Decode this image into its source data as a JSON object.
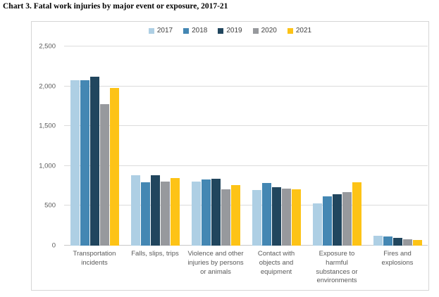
{
  "page": {
    "title": "Chart 3. Fatal work injuries by major event or exposure, 2017-21"
  },
  "chart_data": {
    "type": "bar",
    "title": "Chart 3. Fatal work injuries by major event or exposure, 2017-21",
    "categories": [
      "Transportation incidents",
      "Falls, slips, trips",
      "Violence and other injuries by persons or animals",
      "Contact with objects and equipment",
      "Exposure to harmful substances or environments",
      "Fires and explosions"
    ],
    "series": [
      {
        "name": "2017",
        "color": "#aecfe4",
        "values": [
          2077,
          887,
          807,
          695,
          531,
          123
        ]
      },
      {
        "name": "2018",
        "color": "#4487b3",
        "values": [
          2080,
          791,
          828,
          786,
          621,
          115
        ]
      },
      {
        "name": "2019",
        "color": "#21465e",
        "values": [
          2122,
          880,
          841,
          732,
          642,
          99
        ]
      },
      {
        "name": "2020",
        "color": "#97999d",
        "values": [
          1778,
          805,
          705,
          716,
          672,
          80
        ]
      },
      {
        "name": "2021",
        "color": "#fdc316",
        "values": [
          1982,
          850,
          761,
          705,
          798,
          72
        ]
      }
    ],
    "xlabel": "",
    "ylabel": "",
    "ylim": [
      0,
      2500
    ],
    "yticks": [
      0,
      500,
      1000,
      1500,
      2000,
      2500
    ],
    "ytick_labels": [
      "0",
      "500",
      "1,000",
      "1,500",
      "2,000",
      "2,500"
    ],
    "grid": true,
    "legend_position": "top-center"
  }
}
